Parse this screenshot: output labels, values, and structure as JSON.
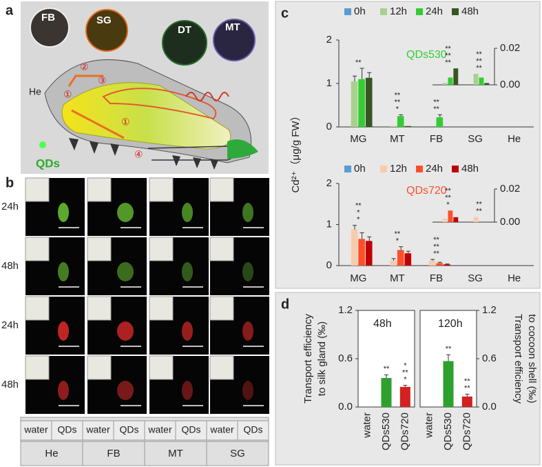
{
  "figure": {
    "panel_a": {
      "label": "a",
      "magnified": [
        "FB",
        "SG",
        "DT",
        "MT"
      ],
      "tissue": "He",
      "source": "QDs",
      "steps": [
        "①",
        "②",
        "③",
        "①",
        "④"
      ]
    },
    "panel_b": {
      "label": "b",
      "rows": [
        "24h",
        "48h",
        "24h",
        "48h"
      ],
      "table": [
        [
          "water",
          "QDs",
          "water",
          "QDs",
          "water",
          "QDs",
          "water",
          "QDs"
        ],
        [
          "He",
          "FB",
          "MT",
          "SG"
        ]
      ]
    },
    "panel_c": {
      "label": "c",
      "ylabel": "Cd²⁺（μg/g FW）"
    },
    "panel_d": {
      "label": "d"
    }
  },
  "chart_data": [
    {
      "type": "bar",
      "title": "QDs530",
      "categories": [
        "MG",
        "MT",
        "FB",
        "SG",
        "He"
      ],
      "ylim": [
        0,
        2
      ],
      "yticks": [
        0,
        1,
        2
      ],
      "y2lim": [
        0,
        0.02
      ],
      "y2ticks": [
        {
          "value": 0,
          "label": "0.00"
        },
        {
          "value": 0.02,
          "label": "0.02"
        }
      ],
      "series": [
        {
          "name": "0h",
          "color": "#5b9bd5",
          "values": [
            0,
            0,
            0,
            0,
            0
          ],
          "errors": [
            0,
            0,
            0,
            0,
            0
          ],
          "inset_values": [
            0,
            0
          ]
        },
        {
          "name": "12h",
          "color": "#a9d18e",
          "values": [
            1.05,
            0.02,
            0,
            0,
            0
          ],
          "errors": [
            0.12,
            0,
            0,
            0,
            0
          ],
          "inset_values": [
            0.001,
            0.006
          ]
        },
        {
          "name": "24h",
          "color": "#33cc33",
          "values": [
            1.1,
            0.25,
            0.22,
            0,
            0
          ],
          "errors": [
            0.25,
            0.03,
            0.06,
            0,
            0
          ],
          "inset_values": [
            0.004,
            0.004
          ]
        },
        {
          "name": "48h",
          "color": "#375623",
          "values": [
            1.13,
            0.02,
            0,
            0,
            0
          ],
          "errors": [
            0.12,
            0,
            0,
            0,
            0
          ],
          "inset_values": [
            0.009,
            0.001
          ]
        }
      ],
      "annotations": [
        {
          "text": "**",
          "category": "MG"
        },
        {
          "text": "*",
          "category": "MT"
        },
        {
          "text": "**",
          "category": "MT"
        },
        {
          "text": "**",
          "category": "MT"
        },
        {
          "text": "**",
          "category": "FB"
        },
        {
          "text": "**",
          "category": "FB"
        }
      ],
      "inset_annotations": [
        {
          "text": "**",
          "category": "SG"
        },
        {
          "text": "**",
          "category": "SG"
        },
        {
          "text": "**",
          "category": "SG"
        },
        {
          "text": "**",
          "category": "He"
        },
        {
          "text": "**",
          "category": "He"
        },
        {
          "text": "**",
          "category": "He"
        }
      ]
    },
    {
      "type": "bar",
      "title": "QDs720",
      "categories": [
        "MG",
        "MT",
        "FB",
        "SG",
        "He"
      ],
      "ylim": [
        0,
        2
      ],
      "yticks": [
        0,
        1,
        2
      ],
      "y2lim": [
        0,
        0.02
      ],
      "y2ticks": [
        {
          "value": 0,
          "label": "0.00"
        },
        {
          "value": 0.02,
          "label": "0.02"
        }
      ],
      "series": [
        {
          "name": "0h",
          "color": "#5b9bd5",
          "values": [
            0,
            0,
            0,
            0,
            0
          ],
          "errors": [
            0,
            0,
            0,
            0,
            0
          ],
          "inset_values": [
            0,
            0
          ]
        },
        {
          "name": "12h",
          "color": "#f8cbad",
          "values": [
            0.88,
            0.12,
            0.12,
            0,
            0
          ],
          "errors": [
            0.1,
            0.05,
            0.03,
            0,
            0
          ],
          "inset_values": [
            0.002,
            0.003
          ]
        },
        {
          "name": "24h",
          "color": "#ff4f2a",
          "values": [
            0.65,
            0.38,
            0.06,
            0,
            0
          ],
          "errors": [
            0.15,
            0.08,
            0.02,
            0,
            0
          ],
          "inset_values": [
            0.007,
            0
          ]
        },
        {
          "name": "48h",
          "color": "#c00000",
          "values": [
            0.6,
            0.3,
            0.03,
            0,
            0
          ],
          "errors": [
            0.1,
            0.05,
            0.01,
            0,
            0
          ],
          "inset_values": [
            0.003,
            0
          ]
        }
      ],
      "annotations": [
        {
          "text": "*",
          "category": "MG"
        },
        {
          "text": "*",
          "category": "MG"
        },
        {
          "text": "**",
          "category": "MG"
        },
        {
          "text": "*",
          "category": "MT"
        },
        {
          "text": "**",
          "category": "MT"
        },
        {
          "text": "**",
          "category": "FB"
        },
        {
          "text": "**",
          "category": "FB"
        },
        {
          "text": "**",
          "category": "FB"
        }
      ],
      "inset_annotations": [
        {
          "text": "*",
          "category": "SG"
        },
        {
          "text": "**",
          "category": "SG"
        },
        {
          "text": "**",
          "category": "SG"
        },
        {
          "text": "**",
          "category": "He"
        },
        {
          "text": "**",
          "category": "He"
        }
      ]
    },
    {
      "type": "bar",
      "title": "48h",
      "categories": [
        "water",
        "QDs530",
        "QDs720"
      ],
      "values": [
        0,
        0.36,
        0.25
      ],
      "errors": [
        0,
        0.04,
        0.02
      ],
      "colors": [
        "#888888",
        "#2ea02e",
        "#d42020"
      ],
      "ylim": [
        0,
        1.2
      ],
      "yticks": [
        {
          "value": 0,
          "label": "0.0"
        },
        0.6,
        1.2
      ],
      "ylabel": [
        "Transport efficiency",
        "to silk gland (‰)"
      ],
      "annotations": [
        {
          "text": "*",
          "category": "QDs720"
        },
        {
          "text": "**",
          "category": "QDs720"
        },
        {
          "text": "*",
          "category": "QDs720"
        },
        {
          "text": "**",
          "category": "QDs530"
        }
      ]
    },
    {
      "type": "bar",
      "title": "120h",
      "categories": [
        "water",
        "QDs530",
        "QDs720"
      ],
      "axis": "y2",
      "values": [
        0,
        0.57,
        0.13
      ],
      "errors": [
        0,
        0.08,
        0.03
      ],
      "colors": [
        "#888888",
        "#2ea02e",
        "#d42020"
      ],
      "y2lim": [
        0,
        1.2
      ],
      "y2ticks": [
        {
          "value": 0,
          "label": "0.0"
        },
        0.6,
        1.2
      ],
      "y2label": [
        "Transport efficiency",
        "to cocoon shell (‰)"
      ],
      "annotations": [
        {
          "text": "**",
          "category": "QDs720"
        },
        {
          "text": "**",
          "category": "QDs720"
        },
        {
          "text": "**",
          "category": "QDs530"
        }
      ]
    }
  ]
}
